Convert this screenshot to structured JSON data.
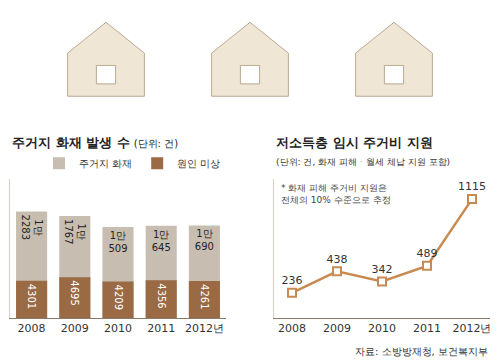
{
  "chart_data": [
    {
      "type": "bar",
      "title": "주거지 화재 발생 수",
      "subtitle": "(단위: 건)",
      "categories": [
        "2008",
        "2009",
        "2010",
        "2011",
        "2012년"
      ],
      "series": [
        {
          "name": "주거지 화재",
          "color": "#c8bdb1",
          "values": [
            12283,
            11767,
            10509,
            10645,
            10690
          ],
          "value_labels": [
            "1만 2283",
            "1만 1767",
            "1만 509",
            "1만 645",
            "1만 690"
          ]
        },
        {
          "name": "원인 미상",
          "color": "#9a6a45",
          "values": [
            4301,
            4695,
            4209,
            4356,
            4261
          ]
        }
      ],
      "stacked": false,
      "data_labels": true,
      "legend": "top right",
      "ylim": [
        0,
        16000
      ],
      "tick_labels": "x",
      "grid": false
    },
    {
      "type": "line",
      "title": "저소득층 임시 주거비 지원",
      "subtitle": "(단위: 건, 화재 피해ㆍ월세 체납 지원 포함)",
      "annotations": [
        "* 화재 피해 주거비 지원은 전체의 10% 수준으로 추정"
      ],
      "categories": [
        "2008",
        "2009",
        "2010",
        "2011",
        "2012년"
      ],
      "values": [
        236,
        438,
        342,
        489,
        1115
      ],
      "color": "#c98a52",
      "marker": "square",
      "data_labels": true,
      "ylim": [
        0,
        1300
      ],
      "tick_labels": "x",
      "grid": false
    }
  ],
  "source": "자료: 소방방재청, 보건복지부"
}
